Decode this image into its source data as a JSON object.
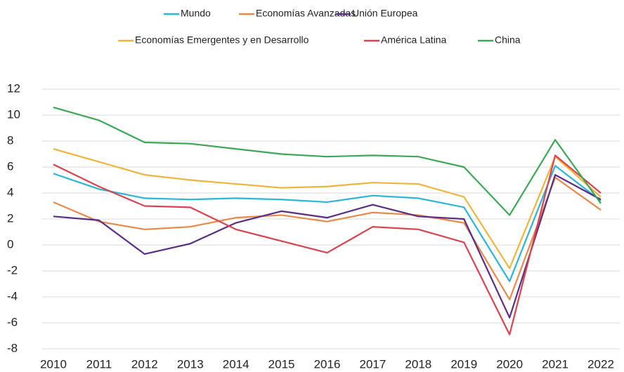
{
  "chart_data": {
    "type": "line",
    "categories": [
      "2010",
      "2011",
      "2012",
      "2013",
      "2014",
      "2015",
      "2016",
      "2017",
      "2018",
      "2019",
      "2020",
      "2021",
      "2022"
    ],
    "series": [
      {
        "name": "Mundo",
        "color": "#2bb5d8",
        "values": [
          5.5,
          4.3,
          3.6,
          3.5,
          3.6,
          3.5,
          3.3,
          3.8,
          3.6,
          2.9,
          -2.8,
          6.1,
          3.4
        ]
      },
      {
        "name": "Economías Avanzadas",
        "color": "#e8894a",
        "values": [
          3.3,
          1.8,
          1.2,
          1.4,
          2.1,
          2.3,
          1.8,
          2.5,
          2.3,
          1.7,
          -4.2,
          5.2,
          2.7
        ]
      },
      {
        "name": "Unión Europea",
        "color": "#5b2d82",
        "values": [
          2.2,
          1.9,
          -0.7,
          0.1,
          1.7,
          2.6,
          2.1,
          3.1,
          2.2,
          2.0,
          -5.6,
          5.4,
          3.5
        ]
      },
      {
        "name": "Economías Emergentes y en Desarrollo",
        "color": "#f0b43c",
        "values": [
          7.4,
          6.4,
          5.4,
          5.0,
          4.7,
          4.4,
          4.5,
          4.8,
          4.7,
          3.7,
          -1.8,
          6.8,
          3.7
        ]
      },
      {
        "name": "América Latina",
        "color": "#d9434f",
        "values": [
          6.2,
          4.5,
          3.0,
          2.9,
          1.2,
          0.3,
          -0.6,
          1.4,
          1.2,
          0.2,
          -6.9,
          6.9,
          4.0
        ]
      },
      {
        "name": "China",
        "color": "#3aa857",
        "values": [
          10.6,
          9.6,
          7.9,
          7.8,
          7.4,
          7.0,
          6.8,
          6.9,
          6.8,
          6.0,
          2.3,
          8.1,
          3.2
        ]
      }
    ],
    "ylim": [
      -8,
      12
    ],
    "yticks": [
      -8,
      -6,
      -4,
      -2,
      0,
      2,
      4,
      6,
      8,
      10,
      12
    ],
    "grid": true
  }
}
